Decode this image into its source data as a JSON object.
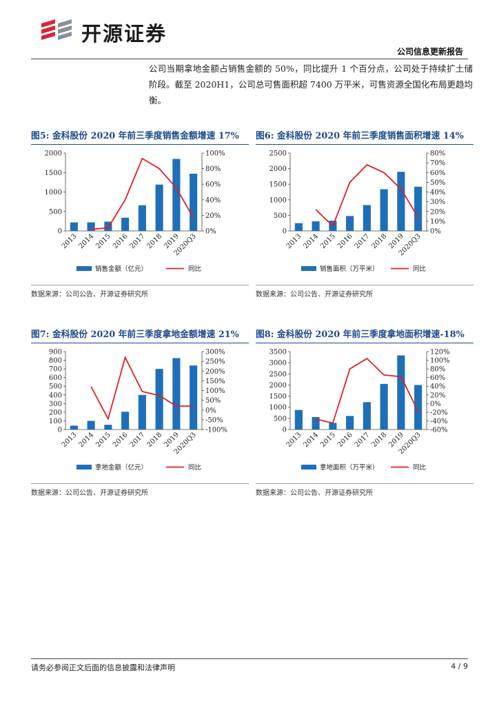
{
  "header": {
    "brand_name": "开源证券",
    "report_type": "公司信息更新报告",
    "logo_icon": "kaiyuan-logo-icon",
    "colors": {
      "primary_blue": "#1a4a8a",
      "logo_red": "#d7263d",
      "logo_gray": "#8a8f99"
    }
  },
  "intro_text": "公司当期拿地金额占销售金额的 50%，同比提升 1 个百分点，公司处于持续扩土储阶段。截至 2020H1，公司总可售面积超 7400 万平米，可售资源全国化布局更趋均衡。",
  "footer": {
    "disclaimer": "请务必参阅正文后面的信息披露和法律声明",
    "page": "4 / 9"
  },
  "colors": {
    "bar": "#1f6fb8",
    "line": "#e31e24"
  },
  "figures": [
    {
      "title": "图5: 金科股份 2020 年前三季度销售金额增速 17%",
      "source": "数据来源：公司公告、开源证券研究所"
    },
    {
      "title": "图6: 金科股份 2020 年前三季度销售面积增速 14%",
      "source": "数据来源：公司公告、开源证券研究所"
    },
    {
      "title": "图7: 金科股份 2020 年前三季度拿地金额增速 21%",
      "source": "数据来源：公司公告、开源证券研究所"
    },
    {
      "title": "图8: 金科股份 2020 年前三季度拿地面积增速-18%",
      "source": "数据来源：公司公告、开源证券研究所"
    }
  ],
  "chart_data": [
    {
      "type": "bar",
      "categories": [
        "2013",
        "2014",
        "2015",
        "2016",
        "2017",
        "2018",
        "2019",
        "2020Q3"
      ],
      "series": [
        {
          "name": "销售金额（亿元）",
          "type": "bar",
          "axis": "left",
          "values": [
            220,
            220,
            240,
            340,
            660,
            1190,
            1850,
            1470
          ]
        },
        {
          "name": "同比",
          "type": "line",
          "axis": "right",
          "values": [
            null,
            2,
            4,
            40,
            93,
            80,
            55,
            17
          ]
        }
      ],
      "ylim": [
        0,
        2000
      ],
      "yticks": [
        0,
        500,
        1000,
        1500,
        2000
      ],
      "y2lim": [
        0,
        100
      ],
      "y2ticks": [
        "0%",
        "20%",
        "40%",
        "60%",
        "80%",
        "100%"
      ],
      "legend": "bottom"
    },
    {
      "type": "bar",
      "categories": [
        "2013",
        "2014",
        "2015",
        "2016",
        "2017",
        "2018",
        "2019",
        "2020Q3"
      ],
      "series": [
        {
          "name": "销售面积（万平米）",
          "type": "bar",
          "axis": "left",
          "values": [
            250,
            310,
            330,
            480,
            830,
            1340,
            1900,
            1420
          ]
        },
        {
          "name": "同比",
          "type": "line",
          "axis": "right",
          "values": [
            null,
            22,
            5,
            50,
            68,
            60,
            43,
            14
          ]
        }
      ],
      "ylim": [
        0,
        2500
      ],
      "yticks": [
        0,
        500,
        1000,
        1500,
        2000,
        2500
      ],
      "y2lim": [
        0,
        80
      ],
      "y2ticks": [
        "0%",
        "10%",
        "20%",
        "30%",
        "40%",
        "50%",
        "60%",
        "70%",
        "80%"
      ],
      "legend": "bottom"
    },
    {
      "type": "bar",
      "categories": [
        "2013",
        "2014",
        "2015",
        "2016",
        "2017",
        "2018",
        "2019",
        "2020Q3"
      ],
      "series": [
        {
          "name": "拿地金额（亿元）",
          "type": "bar",
          "axis": "left",
          "values": [
            45,
            100,
            55,
            205,
            400,
            700,
            825,
            740
          ]
        },
        {
          "name": "同比",
          "type": "line",
          "axis": "right",
          "values": [
            null,
            120,
            -45,
            270,
            95,
            75,
            20,
            21
          ]
        }
      ],
      "ylim": [
        0,
        900
      ],
      "yticks": [
        0,
        100,
        200,
        300,
        400,
        500,
        600,
        700,
        800,
        900
      ],
      "y2lim": [
        -100,
        300
      ],
      "y2ticks": [
        "-100%",
        "-50%",
        "0%",
        "50%",
        "100%",
        "150%",
        "200%",
        "250%",
        "300%"
      ],
      "legend": "bottom"
    },
    {
      "type": "bar",
      "categories": [
        "2013",
        "2014",
        "2015",
        "2016",
        "2017",
        "2018",
        "2019",
        "2020Q3"
      ],
      "series": [
        {
          "name": "拿地面积（万平米）",
          "type": "bar",
          "axis": "left",
          "values": [
            880,
            560,
            300,
            610,
            1230,
            2050,
            3330,
            2000
          ]
        },
        {
          "name": "同比",
          "type": "line",
          "axis": "right",
          "values": [
            null,
            -36,
            -45,
            80,
            104,
            66,
            62,
            -18
          ]
        }
      ],
      "ylim": [
        0,
        3500
      ],
      "yticks": [
        0,
        500,
        1000,
        1500,
        2000,
        2500,
        3000,
        3500
      ],
      "y2lim": [
        -60,
        120
      ],
      "y2ticks": [
        "-60%",
        "-40%",
        "-20%",
        "0%",
        "20%",
        "40%",
        "60%",
        "80%",
        "100%",
        "120%"
      ],
      "legend": "bottom"
    }
  ]
}
